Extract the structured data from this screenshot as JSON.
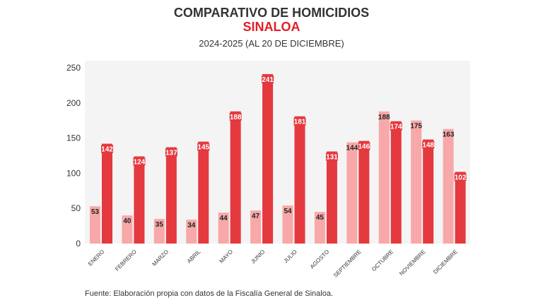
{
  "title": "COMPARATIVO DE HOMICIDIOS",
  "subtitle": "SINALOA",
  "period": "2024-2025 (AL 20 DE DICIEMBRE)",
  "source": "Fuente: Elaboración propia con datos de la Fiscalía General de Sinaloa.",
  "colors": {
    "series_2024": "#f8a8a8",
    "series_2025": "#e4393f",
    "title_accent": "#e01f26",
    "plot_bg": "#f4f4f4"
  },
  "chart_data": {
    "type": "bar",
    "categories": [
      "ENERO",
      "FEBRERO",
      "MARZO",
      "ABRIL",
      "MAYO",
      "JUNIO",
      "JULIO",
      "AGOSTO",
      "SEPTIEMBRE",
      "OCTUBRE",
      "NOVIEMBRE",
      "DICIEMBRE"
    ],
    "series": [
      {
        "values": [
          53,
          40,
          35,
          34,
          44,
          47,
          54,
          45,
          144,
          188,
          175,
          163
        ]
      },
      {
        "values": [
          142,
          124,
          137,
          145,
          188,
          241,
          181,
          131,
          146,
          174,
          148,
          102
        ]
      }
    ],
    "yticks": [
      0,
      50,
      100,
      150,
      200,
      250
    ],
    "ylim": [
      0,
      250
    ],
    "grid": false,
    "legend": "none"
  }
}
